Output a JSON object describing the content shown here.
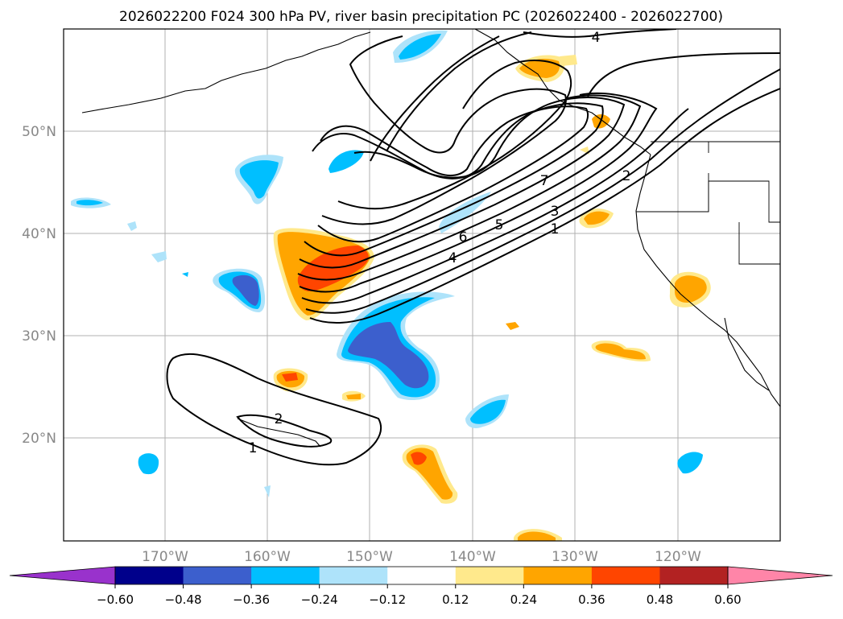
{
  "title": "2026022200 F024 300 hPa PV, river basin precipitation PC (2026022400 - 2026022700)",
  "map": {
    "lon_labels": [
      "170°W",
      "160°W",
      "150°W",
      "140°W",
      "130°W",
      "120°W"
    ],
    "lat_labels": [
      "50°N",
      "40°N",
      "30°N",
      "20°N"
    ],
    "pv_contour_labels": [
      "4",
      "7",
      "2",
      "3",
      "1",
      "5",
      "6",
      "4",
      "2",
      "1"
    ],
    "colors": {
      "pos_light": "#ffe98c",
      "pos_orange": "#ffa500",
      "pos_red": "#ff4500",
      "neg_light": "#aee3fa",
      "neg_cyan": "#00bfff",
      "neg_blue": "#3c5fcd",
      "grid": "#b0b0b0",
      "label_gray": "#888888"
    }
  },
  "colorbar": {
    "ticks": [
      "−0.60",
      "−0.48",
      "−0.36",
      "−0.24",
      "−0.12",
      "0.12",
      "0.24",
      "0.36",
      "0.48",
      "0.60"
    ],
    "colors": [
      "#9932cc",
      "#00008b",
      "#3c5fcd",
      "#00bfff",
      "#aee3fa",
      "#ffffff",
      "#ffe98c",
      "#ffa500",
      "#ff4500",
      "#b22222",
      "#ff85a8"
    ]
  }
}
